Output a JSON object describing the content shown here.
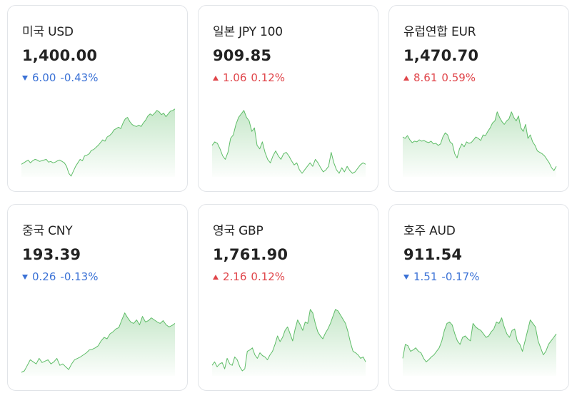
{
  "cards": [
    {
      "name": "미국 USD",
      "rate": "1,400.00",
      "direction": "down",
      "change": "6.00",
      "change_pct": "-0.43%",
      "sparkline": [
        87,
        85,
        83,
        81,
        85,
        82,
        80,
        81,
        83,
        82,
        81,
        80,
        84,
        83,
        85,
        84,
        82,
        81,
        83,
        85,
        90,
        100,
        104,
        97,
        90,
        85,
        80,
        82,
        75,
        74,
        72,
        67,
        66,
        63,
        60,
        56,
        52,
        54,
        48,
        46,
        43,
        38,
        36,
        34,
        36,
        28,
        22,
        20,
        26,
        30,
        32,
        33,
        31,
        33,
        28,
        24,
        18,
        15,
        17,
        14,
        10,
        12,
        16,
        14,
        19,
        15,
        11,
        10,
        8
      ],
      "trend_color": "#5fbd68"
    },
    {
      "name": "일본 JPY 100",
      "rate": "909.85",
      "direction": "up",
      "change": "1.06",
      "change_pct": "0.12%",
      "sparkline": [
        60,
        55,
        57,
        65,
        75,
        80,
        70,
        50,
        45,
        30,
        20,
        15,
        10,
        20,
        25,
        40,
        35,
        60,
        65,
        55,
        70,
        80,
        85,
        75,
        68,
        75,
        80,
        72,
        70,
        75,
        82,
        88,
        85,
        95,
        100,
        95,
        90,
        85,
        90,
        80,
        85,
        92,
        98,
        95,
        90,
        70,
        85,
        95,
        100,
        92,
        98,
        90,
        96,
        100,
        98,
        93,
        88,
        85,
        87
      ],
      "trend_color": "#5fbd68"
    },
    {
      "name": "유럽연합 EUR",
      "rate": "1,470.70",
      "direction": "up",
      "change": "8.61",
      "change_pct": "0.59%",
      "sparkline": [
        48,
        50,
        46,
        52,
        56,
        54,
        55,
        52,
        54,
        53,
        55,
        56,
        54,
        58,
        57,
        60,
        58,
        48,
        42,
        45,
        55,
        58,
        72,
        78,
        65,
        58,
        62,
        55,
        57,
        56,
        52,
        48,
        50,
        53,
        45,
        46,
        40,
        35,
        28,
        25,
        12,
        20,
        26,
        30,
        25,
        22,
        12,
        20,
        25,
        18,
        35,
        40,
        30,
        50,
        45,
        55,
        60,
        68,
        70,
        72,
        75,
        80,
        85,
        92,
        96,
        90
      ],
      "trend_color": "#5fbd68"
    },
    {
      "name": "중국 CNY",
      "rate": "193.39",
      "direction": "down",
      "change": "0.26",
      "change_pct": "-0.13%",
      "sparkline": [
        100,
        98,
        90,
        82,
        85,
        88,
        80,
        86,
        84,
        82,
        88,
        85,
        80,
        90,
        88,
        92,
        96,
        88,
        82,
        80,
        78,
        75,
        72,
        68,
        67,
        65,
        62,
        55,
        50,
        52,
        45,
        42,
        38,
        36,
        25,
        15,
        22,
        28,
        30,
        25,
        32,
        20,
        28,
        26,
        22,
        25,
        28,
        30,
        26,
        32,
        35,
        33,
        30
      ],
      "trend_color": "#5fbd68"
    },
    {
      "name": "영국 GBP",
      "rate": "1,761.90",
      "direction": "up",
      "change": "2.16",
      "change_pct": "0.12%",
      "sparkline": [
        90,
        85,
        92,
        88,
        86,
        95,
        80,
        88,
        90,
        78,
        82,
        92,
        98,
        95,
        70,
        68,
        65,
        75,
        80,
        72,
        76,
        78,
        82,
        75,
        70,
        60,
        48,
        56,
        50,
        40,
        35,
        45,
        55,
        38,
        25,
        32,
        40,
        28,
        30,
        10,
        15,
        30,
        42,
        48,
        52,
        44,
        38,
        30,
        20,
        10,
        12,
        18,
        24,
        30,
        42,
        58,
        70,
        72,
        75,
        80,
        78,
        85
      ],
      "trend_color": "#5fbd68"
    },
    {
      "name": "호주 AUD",
      "rate": "911.54",
      "direction": "down",
      "change": "1.51",
      "change_pct": "-0.17%",
      "sparkline": [
        80,
        60,
        62,
        70,
        68,
        65,
        70,
        72,
        80,
        85,
        82,
        78,
        75,
        70,
        65,
        55,
        40,
        30,
        28,
        32,
        45,
        55,
        60,
        50,
        48,
        52,
        55,
        30,
        35,
        38,
        40,
        45,
        50,
        48,
        42,
        38,
        28,
        30,
        22,
        35,
        45,
        50,
        40,
        38,
        55,
        60,
        70,
        55,
        40,
        25,
        30,
        35,
        55,
        65,
        75,
        70,
        60,
        55,
        50,
        45
      ],
      "trend_color": "#5fbd68"
    }
  ]
}
